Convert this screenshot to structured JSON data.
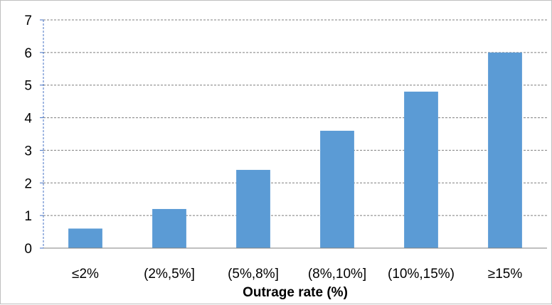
{
  "chart_data": {
    "type": "bar",
    "title": "",
    "xlabel": "Outrage rate (%)",
    "ylabel": "",
    "categories": [
      "≤2%",
      "(2%,5%]",
      "(5%,8%]",
      "(8%,10%]",
      "(10%,15%)",
      "≥15%"
    ],
    "values": [
      0.6,
      1.2,
      2.4,
      3.6,
      4.8,
      6.0
    ],
    "ylim": [
      0,
      7
    ],
    "yticks": [
      0,
      1,
      2,
      3,
      4,
      5,
      6,
      7
    ],
    "grid": "horizontal-dashed",
    "legend": "none",
    "bar_color": "#5b9bd5",
    "grid_color": "#7f7f7f",
    "axis_color": "#4472c4"
  }
}
